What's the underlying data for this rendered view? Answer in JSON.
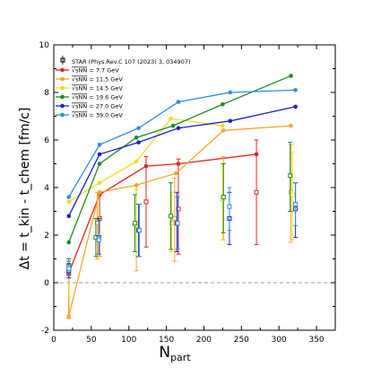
{
  "chart_data": {
    "type": "line",
    "title": "",
    "xlabel_main": "N",
    "xlabel_sub": "part",
    "ylabel": "Δt = t_kin - t_chem [fm/c]",
    "xlim": [
      0,
      375
    ],
    "ylim": [
      -2,
      10
    ],
    "xticks": [
      0,
      50,
      100,
      150,
      200,
      250,
      300,
      350
    ],
    "yticks": [
      -2,
      0,
      2,
      4,
      6,
      8,
      10
    ],
    "grid": false,
    "legend_position": "top-left",
    "reference_line": {
      "y": 0,
      "style": "dashed"
    },
    "star_label": "STAR (Phys.Rev.C 107 (2023) 3, 034907)",
    "energy_prefix": "√sNN",
    "series": [
      {
        "name": "√sNN = 7.7 GeV",
        "energy": "= 7.7 GeV",
        "color": "#e8211f",
        "model_x": [
          20,
          61,
          123,
          166,
          270
        ],
        "model_y": [
          0.4,
          3.7,
          4.9,
          5.0,
          5.4
        ],
        "star": [
          {
            "x": 20,
            "y": 0.4,
            "lo": -1.5,
            "hi": 0.8
          },
          {
            "x": 61,
            "y": 2.7,
            "lo": 1.1,
            "hi": 3.8
          },
          {
            "x": 123,
            "y": 3.4,
            "lo": 1.5,
            "hi": 5.3
          },
          {
            "x": 166,
            "y": 3.1,
            "lo": 1.2,
            "hi": 5.2
          },
          {
            "x": 270,
            "y": 3.8,
            "lo": 1.6,
            "hi": 6.0
          }
        ]
      },
      {
        "name": "√sNN = 11.5 GeV",
        "energy": "= 11.5 GeV",
        "color": "#f5a623",
        "model_x": [
          20,
          61,
          110,
          163,
          226,
          316
        ],
        "model_y": [
          -1.4,
          3.8,
          4.1,
          4.6,
          6.4,
          6.6
        ],
        "star": [
          {
            "x": 20,
            "y": 0.5,
            "lo": -1.5,
            "hi": 0.9
          },
          {
            "x": 58,
            "y": 2.5,
            "lo": 1.0,
            "hi": 3.8
          },
          {
            "x": 110,
            "y": 2.4,
            "lo": 0.5,
            "hi": 4.1
          },
          {
            "x": 161,
            "y": 2.7,
            "lo": 0.9,
            "hi": 4.4
          },
          {
            "x": 226,
            "y": 3.6,
            "lo": 1.8,
            "hi": 5.3
          },
          {
            "x": 316,
            "y": 3.8,
            "lo": 1.7,
            "hi": 5.8
          }
        ]
      },
      {
        "name": "√sNN = 14.5 GeV",
        "energy": "= 14.5 GeV",
        "color": "#f0dc1b",
        "model_x": [
          20,
          61,
          110,
          156,
          225
        ],
        "model_y": [
          3.4,
          4.2,
          5.1,
          6.9,
          6.6
        ],
        "star": [
          {
            "x": 20,
            "y": 0.5,
            "lo": -0.6,
            "hi": 0.8
          },
          {
            "x": 60,
            "y": 2.0,
            "lo": 1.1,
            "hi": 2.9
          },
          {
            "x": 110,
            "y": 2.5,
            "lo": 1.1,
            "hi": 3.9
          },
          {
            "x": 157,
            "y": 2.5,
            "lo": 1.3,
            "hi": 3.8
          },
          {
            "x": 225,
            "y": 3.5,
            "lo": 1.8,
            "hi": 5.0
          },
          {
            "x": 318,
            "y": 3.7,
            "lo": 1.8,
            "hi": 5.5
          }
        ]
      },
      {
        "name": "√sNN = 19.6 GeV",
        "energy": "= 19.6 GeV",
        "color": "#1e8c1e",
        "model_x": [
          20,
          61,
          110,
          159,
          225,
          316
        ],
        "model_y": [
          1.7,
          5.0,
          6.1,
          6.6,
          7.5,
          8.7
        ],
        "star": [
          {
            "x": 20,
            "y": 0.7,
            "lo": 0.3,
            "hi": 1.0
          },
          {
            "x": 56,
            "y": 1.9,
            "lo": 1.1,
            "hi": 2.7
          },
          {
            "x": 108,
            "y": 2.5,
            "lo": 1.3,
            "hi": 3.7
          },
          {
            "x": 156,
            "y": 2.8,
            "lo": 1.4,
            "hi": 4.2
          },
          {
            "x": 226,
            "y": 3.6,
            "lo": 2.1,
            "hi": 5.0
          },
          {
            "x": 315,
            "y": 4.5,
            "lo": 3.0,
            "hi": 5.9
          }
        ]
      },
      {
        "name": "√sNN = 27.0 GeV",
        "energy": "= 27.0 GeV",
        "color": "#1d1dd4",
        "model_x": [
          20,
          61,
          113,
          166,
          235,
          322
        ],
        "model_y": [
          2.8,
          5.4,
          5.9,
          6.5,
          6.8,
          7.4
        ],
        "star": [
          {
            "x": 20,
            "y": 0.5,
            "lo": 0.2,
            "hi": 0.8
          },
          {
            "x": 60,
            "y": 1.9,
            "lo": 1.2,
            "hi": 2.7
          },
          {
            "x": 113,
            "y": 2.2,
            "lo": 1.1,
            "hi": 3.3
          },
          {
            "x": 164,
            "y": 2.5,
            "lo": 1.3,
            "hi": 3.8
          },
          {
            "x": 234,
            "y": 2.7,
            "lo": 1.6,
            "hi": 3.8
          },
          {
            "x": 322,
            "y": 3.1,
            "lo": 1.9,
            "hi": 4.2
          }
        ]
      },
      {
        "name": "√sNN = 39.0 GeV",
        "energy": "= 39.0 GeV",
        "color": "#2b8fe6",
        "model_x": [
          20,
          61,
          113,
          166,
          235,
          322
        ],
        "model_y": [
          3.6,
          5.8,
          6.5,
          7.6,
          8.0,
          8.1
        ],
        "star": [
          {
            "x": 20,
            "y": 0.6,
            "lo": 0.3,
            "hi": 0.9
          },
          {
            "x": 60,
            "y": 1.8,
            "lo": 1.2,
            "hi": 2.6
          },
          {
            "x": 114,
            "y": 2.2,
            "lo": 1.1,
            "hi": 3.3
          },
          {
            "x": 165,
            "y": 2.5,
            "lo": 1.4,
            "hi": 3.6
          },
          {
            "x": 234,
            "y": 3.2,
            "lo": 2.2,
            "hi": 4.0
          },
          {
            "x": 322,
            "y": 3.3,
            "lo": 2.4,
            "hi": 4.2
          }
        ]
      }
    ]
  }
}
